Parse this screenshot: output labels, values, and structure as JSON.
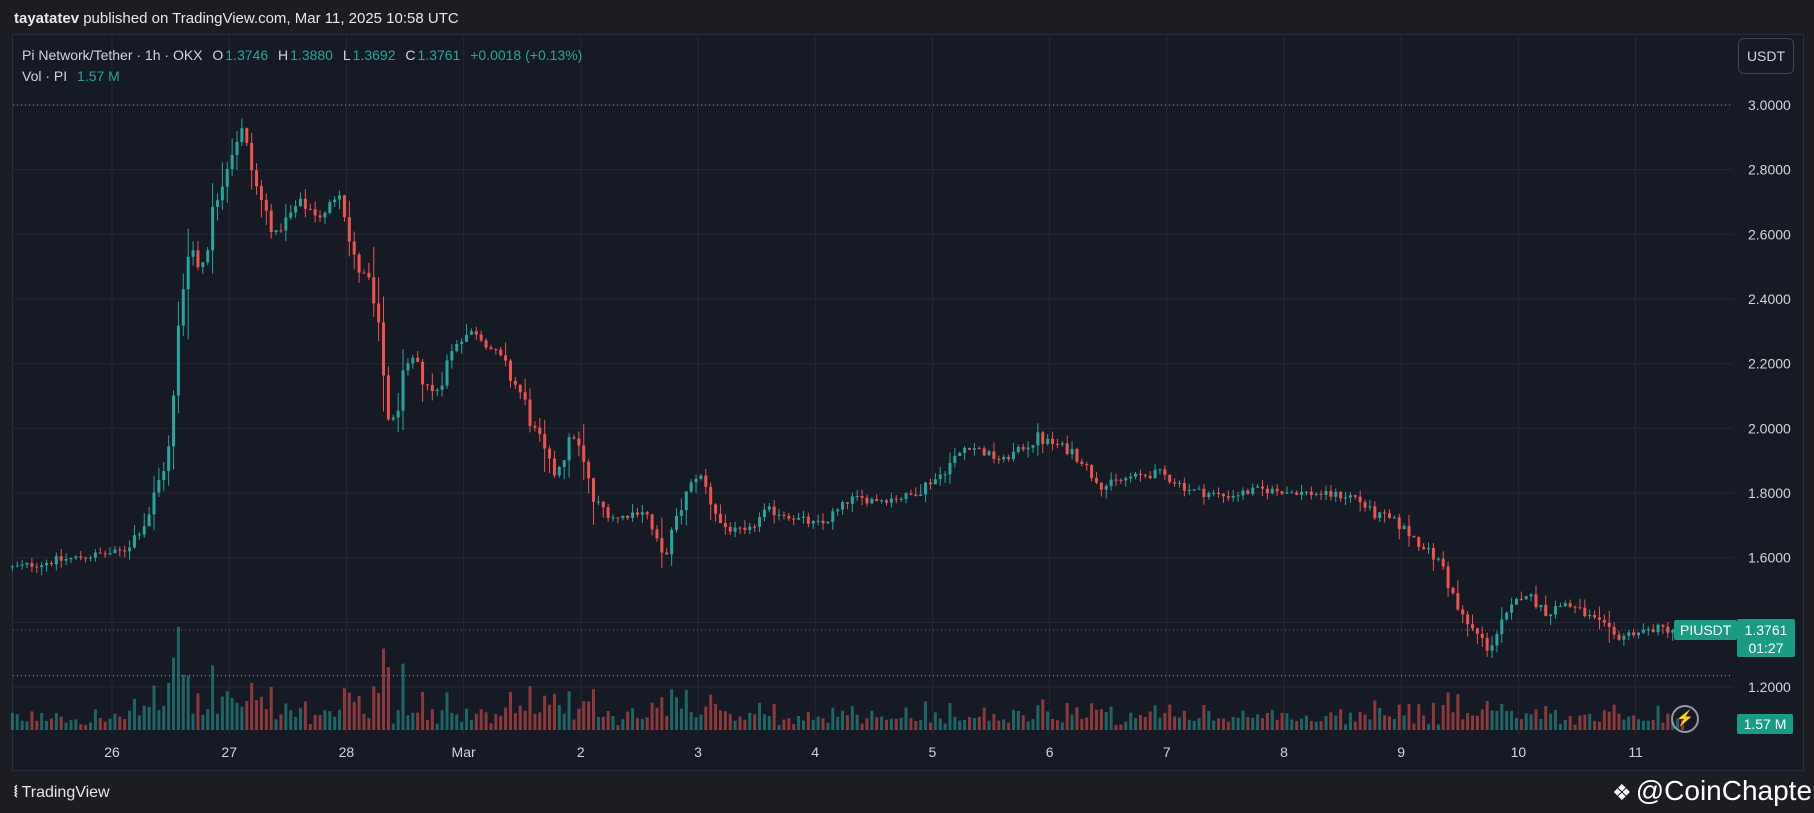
{
  "header": {
    "author": "tayatatev",
    "published_text": "published on TradingView.com, Mar 11, 2025 10:58 UTC"
  },
  "legend": {
    "symbol": "Pi Network/Tether · 1h · OKX",
    "open_label": "O",
    "open": "1.3746",
    "high_label": "H",
    "high": "1.3880",
    "low_label": "L",
    "low": "1.3692",
    "close_label": "C",
    "close": "1.3761",
    "change": "+0.0018 (+0.13%)",
    "vol_label": "Vol · PI",
    "vol_value": "1.57 M"
  },
  "unit_button": "USDT",
  "price_tag": {
    "symbol": "PIUSDT",
    "price": "1.3761",
    "countdown": "01:27"
  },
  "volume_tag": "1.57 M",
  "footer": {
    "brand": "TradingView",
    "watermark": "@CoinChapter"
  },
  "colors": {
    "up": "#26a69a",
    "down": "#ef5350",
    "background": "#161a25",
    "grid": "#242833",
    "accent": "#1a9c84"
  },
  "chart_data": {
    "type": "candlestick",
    "title": "Pi Network/Tether · 1h · OKX",
    "xlabel": "",
    "ylabel": "",
    "ylim": [
      1.12,
      3.06
    ],
    "y_ticks": [
      "3.0000",
      "2.8000",
      "2.6000",
      "2.4000",
      "2.2000",
      "2.0000",
      "1.8000",
      "1.6000",
      "1.2000"
    ],
    "x_ticks": [
      {
        "label": "26",
        "day": 0
      },
      {
        "label": "27",
        "day": 1
      },
      {
        "label": "28",
        "day": 2
      },
      {
        "label": "Mar",
        "day": 3
      },
      {
        "label": "2",
        "day": 4
      },
      {
        "label": "3",
        "day": 5
      },
      {
        "label": "4",
        "day": 6
      },
      {
        "label": "5",
        "day": 7
      },
      {
        "label": "6",
        "day": 8
      },
      {
        "label": "7",
        "day": 9
      },
      {
        "label": "8",
        "day": 10
      },
      {
        "label": "9",
        "day": 11
      },
      {
        "label": "10",
        "day": 12
      },
      {
        "label": "11",
        "day": 13
      }
    ],
    "start_day": -0.85,
    "end_day": 13.4,
    "key_levels": [
      3.0,
      1.3761,
      1.235
    ],
    "last_price": 1.3761,
    "anchors": [
      [
        -0.85,
        1.57
      ],
      [
        -0.3,
        1.6
      ],
      [
        0.1,
        1.62
      ],
      [
        0.3,
        1.72
      ],
      [
        0.5,
        1.95
      ],
      [
        0.58,
        2.35
      ],
      [
        0.65,
        2.6
      ],
      [
        0.75,
        2.48
      ],
      [
        0.95,
        2.8
      ],
      [
        1.1,
        2.93
      ],
      [
        1.25,
        2.72
      ],
      [
        1.4,
        2.6
      ],
      [
        1.6,
        2.7
      ],
      [
        1.8,
        2.65
      ],
      [
        1.95,
        2.75
      ],
      [
        2.05,
        2.52
      ],
      [
        2.2,
        2.45
      ],
      [
        2.38,
        2.0
      ],
      [
        2.55,
        2.22
      ],
      [
        2.75,
        2.1
      ],
      [
        2.95,
        2.28
      ],
      [
        3.1,
        2.3
      ],
      [
        3.3,
        2.22
      ],
      [
        3.5,
        2.1
      ],
      [
        3.75,
        1.85
      ],
      [
        3.95,
        1.98
      ],
      [
        4.1,
        1.78
      ],
      [
        4.3,
        1.72
      ],
      [
        4.55,
        1.75
      ],
      [
        4.7,
        1.58
      ],
      [
        4.85,
        1.75
      ],
      [
        5.0,
        1.87
      ],
      [
        5.2,
        1.7
      ],
      [
        5.4,
        1.67
      ],
      [
        5.6,
        1.75
      ],
      [
        5.85,
        1.72
      ],
      [
        6.05,
        1.7
      ],
      [
        6.3,
        1.78
      ],
      [
        6.6,
        1.78
      ],
      [
        6.8,
        1.79
      ],
      [
        7.05,
        1.85
      ],
      [
        7.3,
        1.95
      ],
      [
        7.6,
        1.9
      ],
      [
        7.9,
        1.97
      ],
      [
        8.2,
        1.93
      ],
      [
        8.45,
        1.82
      ],
      [
        8.7,
        1.85
      ],
      [
        8.95,
        1.86
      ],
      [
        9.2,
        1.81
      ],
      [
        9.5,
        1.79
      ],
      [
        9.8,
        1.81
      ],
      [
        10.2,
        1.8
      ],
      [
        10.6,
        1.79
      ],
      [
        10.75,
        1.74
      ],
      [
        11.0,
        1.7
      ],
      [
        11.2,
        1.63
      ],
      [
        11.35,
        1.58
      ],
      [
        11.5,
        1.42
      ],
      [
        11.75,
        1.32
      ],
      [
        11.9,
        1.42
      ],
      [
        12.05,
        1.5
      ],
      [
        12.25,
        1.43
      ],
      [
        12.4,
        1.46
      ],
      [
        12.6,
        1.42
      ],
      [
        12.8,
        1.35
      ],
      [
        13.0,
        1.37
      ],
      [
        13.2,
        1.38
      ],
      [
        13.4,
        1.3761
      ]
    ]
  }
}
